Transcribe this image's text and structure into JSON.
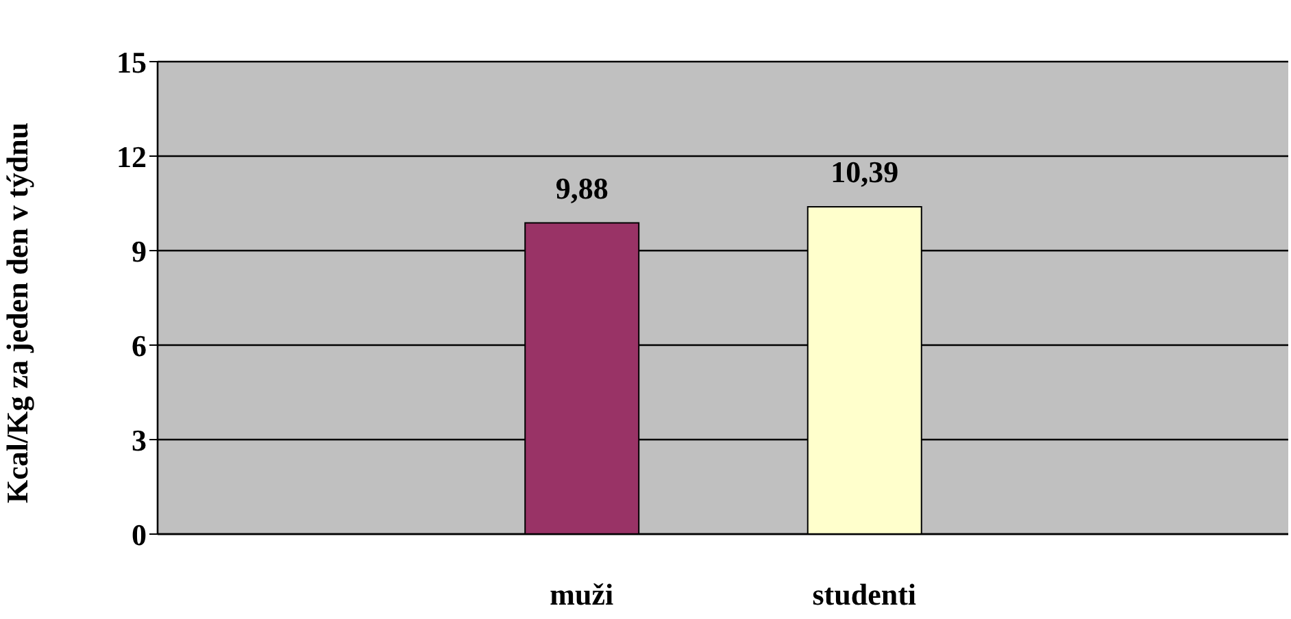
{
  "chart_data": {
    "type": "bar",
    "ylabel": "Kcal/Kg za jeden den v týdnu",
    "categories": [
      null,
      "muži",
      "studenti",
      null
    ],
    "values": [
      null,
      9.88,
      10.39,
      null
    ],
    "colors": [
      "#993366",
      "#993366",
      "#ffffcc",
      "#ffffcc"
    ],
    "value_labels": [
      null,
      "9,88",
      "10,39",
      null
    ],
    "ylim": [
      0,
      15
    ],
    "yticks": [
      0,
      3,
      6,
      9,
      12,
      15
    ],
    "grid": "y"
  }
}
